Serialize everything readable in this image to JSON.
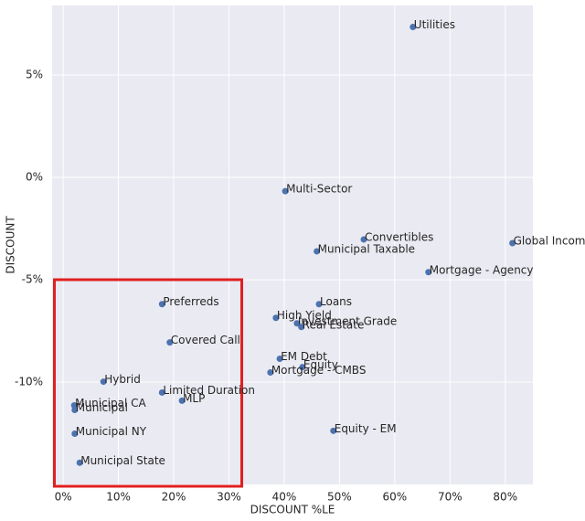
{
  "chart_data": {
    "type": "scatter",
    "xlabel": "DISCOUNT %LE",
    "ylabel": "DISCOUNT",
    "color": "#4c72b0",
    "grid": true,
    "xlim": [
      -2,
      85
    ],
    "ylim": [
      -15,
      8.4
    ],
    "xticks": [
      {
        "value": 0,
        "label": "0%"
      },
      {
        "value": 10,
        "label": "10%"
      },
      {
        "value": 20,
        "label": "20%"
      },
      {
        "value": 30,
        "label": "30%"
      },
      {
        "value": 40,
        "label": "40%"
      },
      {
        "value": 50,
        "label": "50%"
      },
      {
        "value": 60,
        "label": "60%"
      },
      {
        "value": 70,
        "label": "70%"
      },
      {
        "value": 80,
        "label": "80%"
      }
    ],
    "yticks": [
      {
        "value": 5,
        "label": "5%"
      },
      {
        "value": 0,
        "label": "0%"
      },
      {
        "value": -5,
        "label": "-5%"
      },
      {
        "value": -10,
        "label": "-10%"
      }
    ],
    "labels": [
      "Utilities",
      "Multi-Sector",
      "Convertibles",
      "Global Income",
      "Municipal Taxable",
      "Mortgage - Agency",
      "Loans",
      "Preferreds",
      "High Yield",
      "Investment Grade",
      "Real Estate",
      "Covered Call",
      "EM Debt",
      "Equity",
      "Mortgage - CMBS",
      "Hybrid",
      "Limited Duration",
      "MLP",
      "Municipal CA",
      "Municipal",
      "Municipal NY",
      "Equity - EM",
      "Municipal State"
    ],
    "x": [
      63.3,
      40.2,
      54.4,
      81.3,
      45.9,
      66.1,
      46.3,
      17.9,
      38.5,
      42.3,
      43.1,
      19.3,
      39.2,
      43.3,
      37.5,
      7.3,
      17.9,
      21.5,
      2.0,
      2.1,
      2.1,
      48.9,
      3.0
    ],
    "values": [
      7.35,
      -0.67,
      -3.03,
      -3.21,
      -3.61,
      -4.63,
      -6.19,
      -6.19,
      -6.86,
      -7.13,
      -7.31,
      -8.06,
      -8.86,
      -9.27,
      -9.53,
      -9.98,
      -10.51,
      -10.91,
      -11.14,
      -11.36,
      -12.52,
      -12.38,
      -13.94
    ]
  }
}
